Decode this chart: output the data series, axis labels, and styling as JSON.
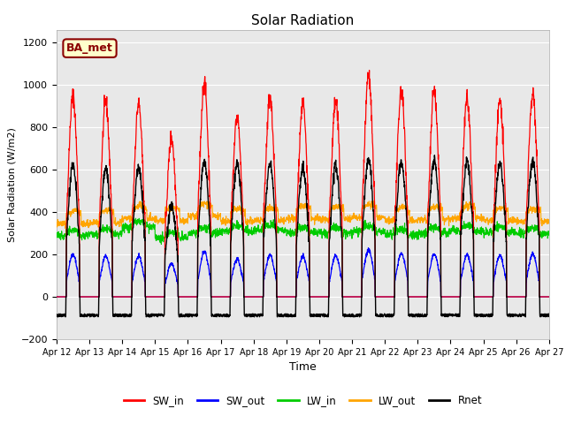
{
  "title": "Solar Radiation",
  "xlabel": "Time",
  "ylabel": "Solar Radiation (W/m2)",
  "ylim": [
    -200,
    1260
  ],
  "yticks": [
    -200,
    0,
    200,
    400,
    600,
    800,
    1000,
    1200
  ],
  "date_labels": [
    "Apr 12",
    "Apr 13",
    "Apr 14",
    "Apr 15",
    "Apr 16",
    "Apr 17",
    "Apr 18",
    "Apr 19",
    "Apr 20",
    "Apr 21",
    "Apr 22",
    "Apr 23",
    "Apr 24",
    "Apr 25",
    "Apr 26",
    "Apr 27"
  ],
  "annotation": "BA_met",
  "colors": {
    "SW_in": "#ff0000",
    "SW_out": "#0000ff",
    "LW_in": "#00cc00",
    "LW_out": "#ffa500",
    "Rnet": "#000000"
  },
  "legend_labels": [
    "SW_in",
    "SW_out",
    "LW_in",
    "LW_out",
    "Rnet"
  ],
  "plot_bg": "#e8e8e8"
}
